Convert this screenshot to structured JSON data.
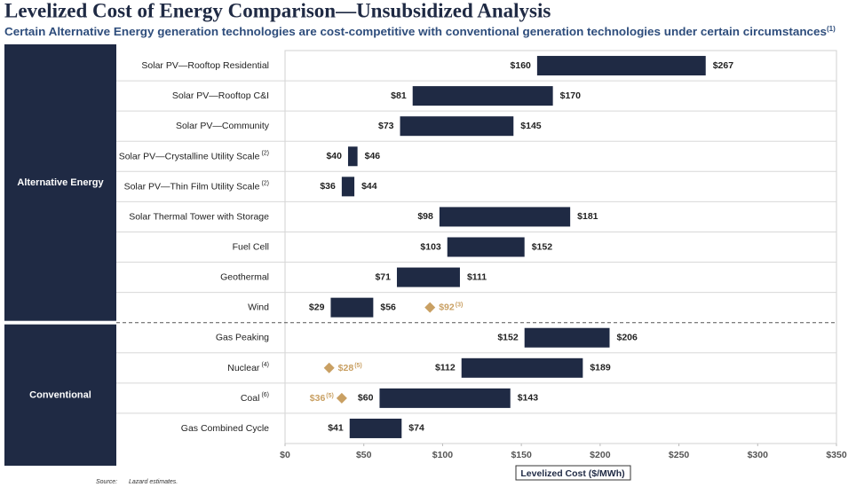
{
  "chart_data": {
    "type": "range-bar",
    "title": "Levelized Cost of Energy Comparison—Unsubsidized Analysis",
    "subtitle": "Certain Alternative Energy generation technologies are cost-competitive with conventional generation technologies under certain circumstances",
    "subtitle_note": "(1)",
    "x_label": "Levelized Cost ($/MWh)",
    "source_label": "Source:",
    "source": "Lazard estimates.",
    "xlim": [
      0,
      350
    ],
    "xticks": [
      {
        "value": 0,
        "label": "$0"
      },
      {
        "value": 50,
        "label": "$50"
      },
      {
        "value": 100,
        "label": "$100"
      },
      {
        "value": 150,
        "label": "$150"
      },
      {
        "value": 200,
        "label": "$200"
      },
      {
        "value": 250,
        "label": "$250"
      },
      {
        "value": 300,
        "label": "$300"
      },
      {
        "value": 350,
        "label": "$350"
      }
    ],
    "color": "#1f2a44",
    "marker_color": "#c9a063",
    "groups": [
      {
        "name": "Alternative Energy",
        "categories": [
          "Solar PV—Rooftop Residential",
          "Solar PV—Rooftop C&I",
          "Solar PV—Community",
          "Solar PV—Crystalline Utility Scale",
          "Solar PV—Thin Film Utility Scale",
          "Solar Thermal Tower with Storage",
          "Fuel Cell",
          "Geothermal",
          "Wind"
        ],
        "category_notes": [
          null,
          null,
          null,
          "(2)",
          "(2)",
          null,
          null,
          null,
          null
        ],
        "low": [
          160,
          81,
          73,
          40,
          36,
          98,
          103,
          71,
          29
        ],
        "high": [
          267,
          170,
          145,
          46,
          44,
          181,
          152,
          111,
          56
        ],
        "low_labels": [
          "$160",
          "$81",
          "$73",
          "$40",
          "$36",
          "$98",
          "$103",
          "$71",
          "$29"
        ],
        "high_labels": [
          "$267",
          "$170",
          "$145",
          "$46",
          "$44",
          "$181",
          "$152",
          "$111",
          "$56"
        ],
        "marker_values": [
          null,
          null,
          null,
          null,
          null,
          null,
          null,
          null,
          92
        ],
        "marker_labels": [
          null,
          null,
          null,
          null,
          null,
          null,
          null,
          null,
          "$92"
        ],
        "marker_notes": [
          null,
          null,
          null,
          null,
          null,
          null,
          null,
          null,
          "(3)"
        ]
      },
      {
        "name": "Conventional",
        "categories": [
          "Gas Peaking",
          "Nuclear",
          "Coal",
          "Gas Combined Cycle"
        ],
        "category_notes": [
          null,
          "(4)",
          "(6)",
          null
        ],
        "low": [
          152,
          112,
          60,
          41
        ],
        "high": [
          206,
          189,
          143,
          74
        ],
        "low_labels": [
          "$152",
          "$112",
          "$60",
          "$41"
        ],
        "high_labels": [
          "$206",
          "$189",
          "$143",
          "$74"
        ],
        "marker_values": [
          null,
          28,
          36,
          null
        ],
        "marker_labels": [
          null,
          "$28",
          "$36",
          null
        ],
        "marker_notes": [
          null,
          "(5)",
          "(5)",
          null
        ]
      }
    ]
  }
}
